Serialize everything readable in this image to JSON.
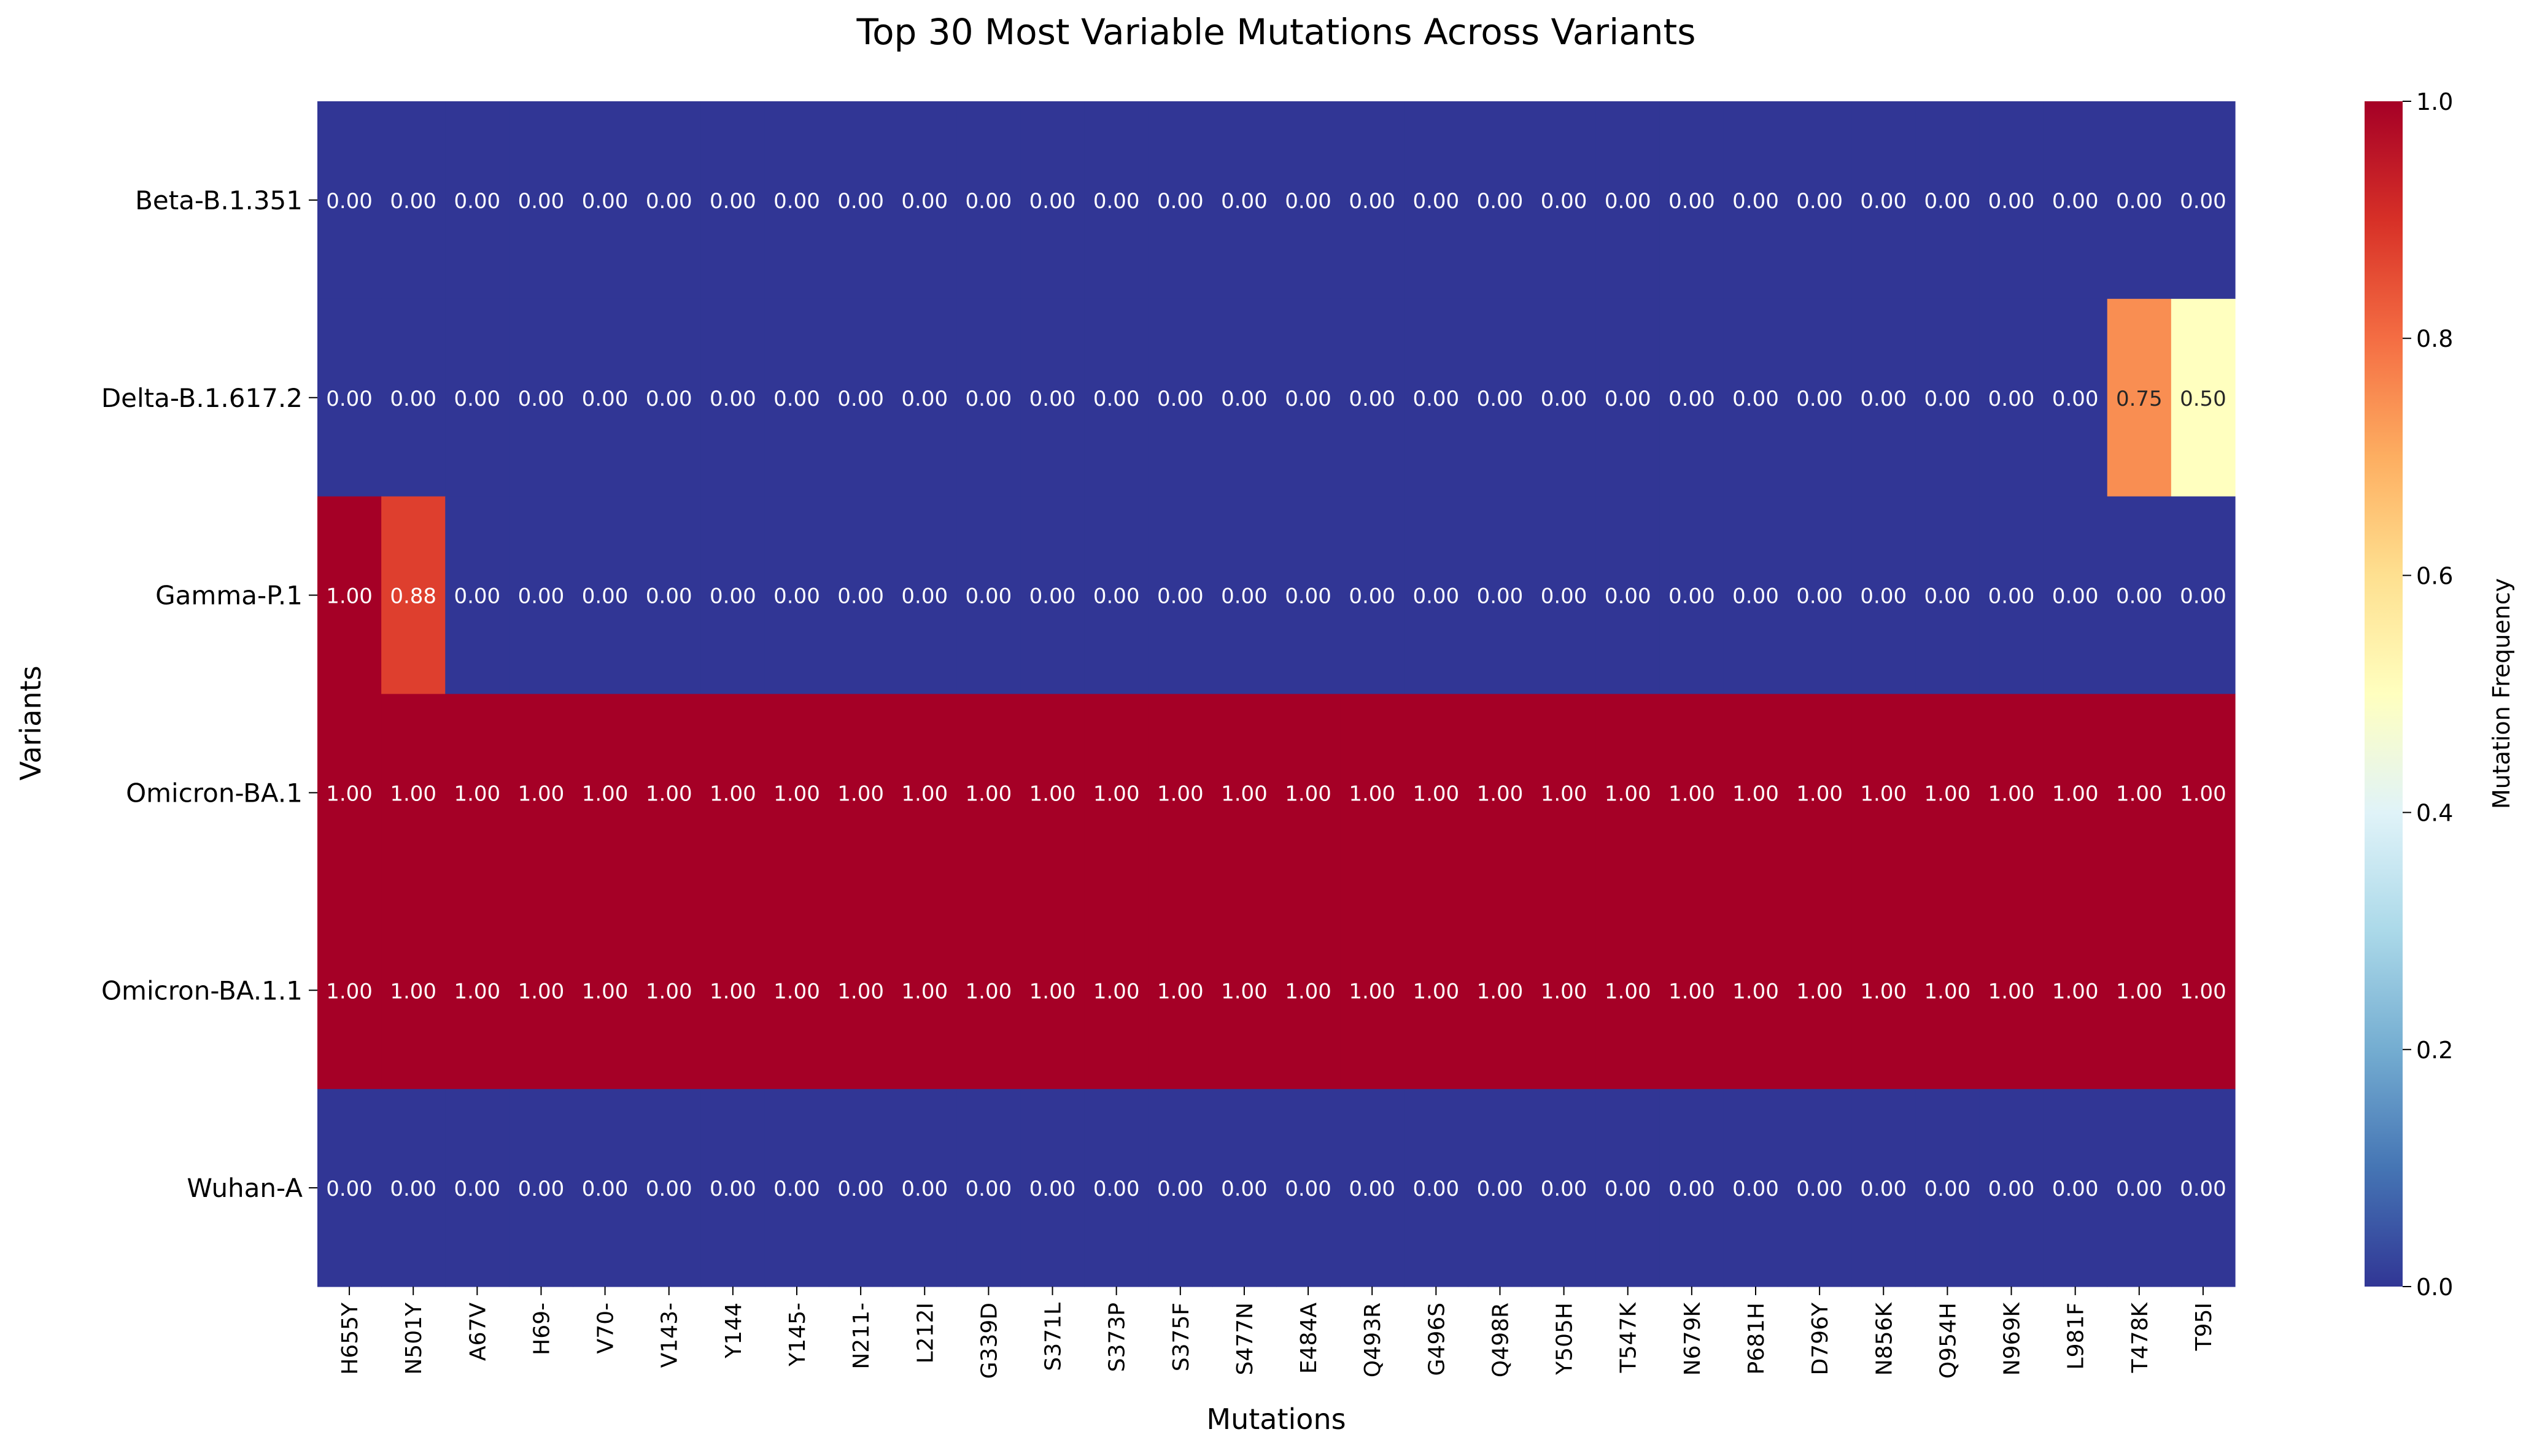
{
  "chart_data": {
    "type": "heatmap",
    "title": "Top 30 Most Variable Mutations Across Variants",
    "xlabel": "Mutations",
    "ylabel": "Variants",
    "colorbar_label": "Mutation Frequency",
    "colormap": "RdYlBu_r",
    "vmin": 0.0,
    "vmax": 1.0,
    "colorbar_ticks": [
      "0.0",
      "0.2",
      "0.4",
      "0.6",
      "0.8",
      "1.0"
    ],
    "x": [
      "H655Y",
      "N501Y",
      "A67V",
      "H69-",
      "V70-",
      "V143-",
      "Y144",
      "Y145-",
      "N211-",
      "L212I",
      "G339D",
      "S371L",
      "S373P",
      "S375F",
      "S477N",
      "E484A",
      "Q493R",
      "G496S",
      "Q498R",
      "Y505H",
      "T547K",
      "N679K",
      "P681H",
      "D796Y",
      "N856K",
      "Q954H",
      "N969K",
      "L981F",
      "T478K",
      "T95I"
    ],
    "y": [
      "Beta-B.1.351",
      "Delta-B.1.617.2",
      "Gamma-P.1",
      "Omicron-BA.1",
      "Omicron-BA.1.1",
      "Wuhan-A"
    ],
    "values": [
      [
        0,
        0,
        0,
        0,
        0,
        0,
        0,
        0,
        0,
        0,
        0,
        0,
        0,
        0,
        0,
        0,
        0,
        0,
        0,
        0,
        0,
        0,
        0,
        0,
        0,
        0,
        0,
        0,
        0,
        0
      ],
      [
        0,
        0,
        0,
        0,
        0,
        0,
        0,
        0,
        0,
        0,
        0,
        0,
        0,
        0,
        0,
        0,
        0,
        0,
        0,
        0,
        0,
        0,
        0,
        0,
        0,
        0,
        0,
        0,
        0.75,
        0.5
      ],
      [
        1.0,
        0.875,
        0,
        0,
        0,
        0,
        0,
        0,
        0,
        0,
        0,
        0,
        0,
        0,
        0,
        0,
        0,
        0,
        0,
        0,
        0,
        0,
        0,
        0,
        0,
        0,
        0,
        0,
        0,
        0
      ],
      [
        1,
        1,
        1,
        1,
        1,
        1,
        1,
        1,
        1,
        1,
        1,
        1,
        1,
        1,
        1,
        1,
        1,
        1,
        1,
        1,
        1,
        1,
        1,
        1,
        1,
        1,
        1,
        1,
        1,
        1
      ],
      [
        1,
        1,
        1,
        1,
        1,
        1,
        1,
        1,
        1,
        1,
        1,
        1,
        1,
        1,
        1,
        1,
        1,
        1,
        1,
        1,
        1,
        1,
        1,
        1,
        1,
        1,
        1,
        1,
        1,
        1
      ],
      [
        0,
        0,
        0,
        0,
        0,
        0,
        0,
        0,
        0,
        0,
        0,
        0,
        0,
        0,
        0,
        0,
        0,
        0,
        0,
        0,
        0,
        0,
        0,
        0,
        0,
        0,
        0,
        0,
        0,
        0
      ]
    ],
    "annotations_format": "2 decimals",
    "grid": false
  }
}
